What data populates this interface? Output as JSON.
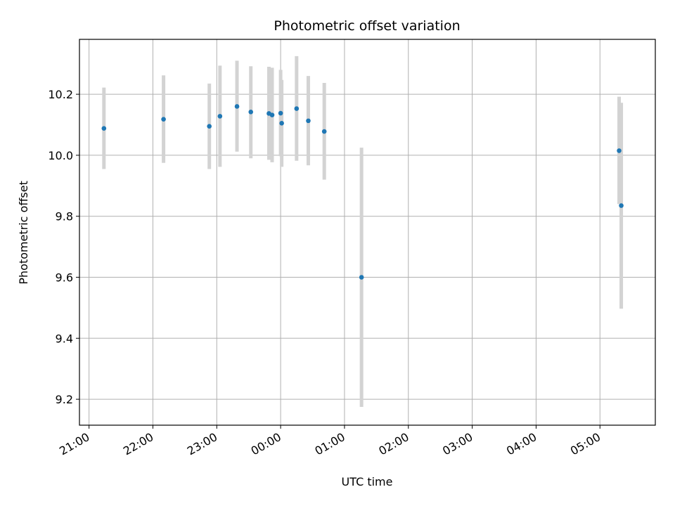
{
  "chart_data": {
    "type": "scatter",
    "title": "Photometric offset variation",
    "xlabel": "UTC time",
    "ylabel": "Photometric offset",
    "x_ticks": [
      "21:00",
      "22:00",
      "23:00",
      "00:00",
      "01:00",
      "02:00",
      "03:00",
      "04:00",
      "05:00"
    ],
    "y_ticks": [
      "9.2",
      "9.4",
      "9.6",
      "9.8",
      "10.0",
      "10.2"
    ],
    "x_range": [
      "20:51",
      "05:52"
    ],
    "y_range": [
      9.115,
      10.38
    ],
    "grid": true,
    "legend": "none",
    "point_color": "#1f77b4",
    "errorbar_color": "#d3d3d3",
    "points": [
      {
        "x": "21:14",
        "y": 10.088,
        "lo": 9.955,
        "hi": 10.222
      },
      {
        "x": "22:10",
        "y": 10.118,
        "lo": 9.975,
        "hi": 10.262
      },
      {
        "x": "22:53",
        "y": 10.095,
        "lo": 9.955,
        "hi": 10.235
      },
      {
        "x": "23:03",
        "y": 10.128,
        "lo": 9.962,
        "hi": 10.294
      },
      {
        "x": "23:19",
        "y": 10.16,
        "lo": 10.012,
        "hi": 10.31
      },
      {
        "x": "23:32",
        "y": 10.142,
        "lo": 9.99,
        "hi": 10.292
      },
      {
        "x": "23:49",
        "y": 10.137,
        "lo": 9.985,
        "hi": 10.29
      },
      {
        "x": "23:52",
        "y": 10.132,
        "lo": 9.977,
        "hi": 10.287
      },
      {
        "x": "00:00",
        "y": 10.138,
        "lo": 9.997,
        "hi": 10.28
      },
      {
        "x": "00:01",
        "y": 10.105,
        "lo": 9.962,
        "hi": 10.247
      },
      {
        "x": "00:15",
        "y": 10.153,
        "lo": 9.982,
        "hi": 10.325
      },
      {
        "x": "00:26",
        "y": 10.113,
        "lo": 9.967,
        "hi": 10.26
      },
      {
        "x": "00:41",
        "y": 10.078,
        "lo": 9.92,
        "hi": 10.237
      },
      {
        "x": "01:16",
        "y": 9.6,
        "lo": 9.175,
        "hi": 10.025
      },
      {
        "x": "05:18",
        "y": 10.015,
        "lo": 9.84,
        "hi": 10.192
      },
      {
        "x": "05:20",
        "y": 9.835,
        "lo": 9.497,
        "hi": 10.172
      }
    ]
  }
}
